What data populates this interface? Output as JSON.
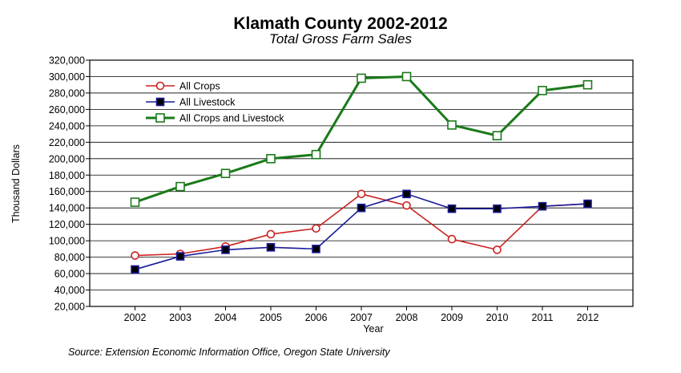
{
  "chart_data": {
    "type": "line",
    "title": "Klamath County 2002-2012",
    "subtitle": "Total Gross Farm Sales",
    "xlabel": "Year",
    "ylabel": "Thousand Dollars",
    "x": [
      "2002",
      "2003",
      "2004",
      "2005",
      "2006",
      "2007",
      "2008",
      "2009",
      "2010",
      "2011",
      "2012"
    ],
    "ylim": [
      20000,
      320000
    ],
    "y_ticks": [
      "20,000",
      "40,000",
      "60,000",
      "80,000",
      "100,000",
      "120,000",
      "140,000",
      "160,000",
      "180,000",
      "200,000",
      "220,000",
      "240,000",
      "260,000",
      "280,000",
      "300,000",
      "320,000"
    ],
    "grid": "horizontal",
    "legend": "top-left",
    "series": [
      {
        "name": "All Crops",
        "color": "#cc2222",
        "marker": "circle-open",
        "values": [
          82000,
          84000,
          93000,
          108000,
          115000,
          157000,
          143000,
          102000,
          89000,
          142000,
          145000
        ]
      },
      {
        "name": "All Livestock",
        "color": "#1a1a99",
        "marker": "square-filled",
        "values": [
          65000,
          81000,
          89000,
          92000,
          90000,
          140000,
          157000,
          139000,
          139000,
          142000,
          145000
        ]
      },
      {
        "name": "All Crops and Livestock",
        "color": "#1a7a1a",
        "marker": "square-open",
        "values": [
          147000,
          166000,
          182000,
          200000,
          205000,
          298000,
          300000,
          241000,
          228000,
          283000,
          290000
        ]
      }
    ],
    "source": "Source:  Extension Economic Information Office, Oregon State University"
  }
}
